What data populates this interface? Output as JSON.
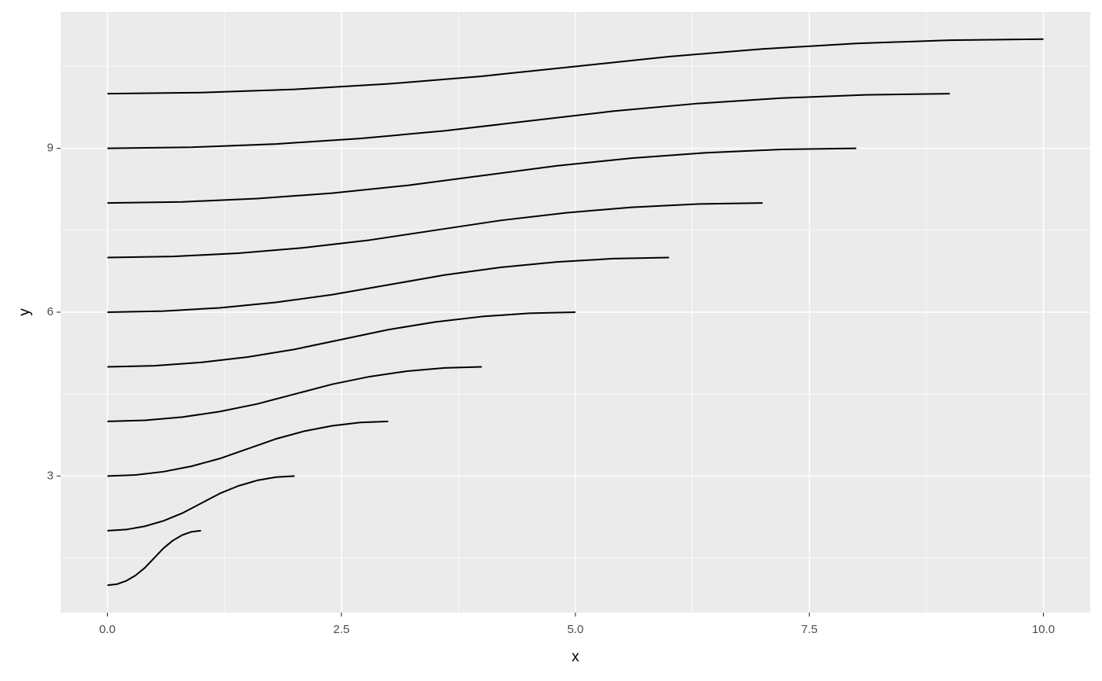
{
  "chart_data": {
    "type": "line",
    "xlabel": "x",
    "ylabel": "y",
    "xlim": [
      -0.5,
      10.5
    ],
    "ylim": [
      0.5,
      11.5
    ],
    "xticks": [
      {
        "value": 0,
        "label": "0.0"
      },
      {
        "value": 2.5,
        "label": "2.5"
      },
      {
        "value": 5,
        "label": "5.0"
      },
      {
        "value": 7.5,
        "label": "7.5"
      },
      {
        "value": 10,
        "label": "10.0"
      }
    ],
    "yticks": [
      3,
      6,
      9
    ],
    "x_minor_grid": [
      1.25,
      3.75,
      6.25,
      8.75
    ],
    "y_minor_grid": [
      1.5,
      4.5,
      7.5,
      10.5
    ],
    "grid": true,
    "series": [
      {
        "color": "#000000",
        "x": [
          0,
          0.1,
          0.2,
          0.3,
          0.4,
          0.5,
          0.6,
          0.7,
          0.8,
          0.9,
          1
        ],
        "values": [
          1,
          1.02,
          1.08,
          1.18,
          1.32,
          1.5,
          1.68,
          1.82,
          1.92,
          1.98,
          2
        ]
      },
      {
        "color": "#000000",
        "x": [
          0,
          0.2,
          0.4,
          0.6,
          0.8,
          1,
          1.2,
          1.4,
          1.6,
          1.8,
          2
        ],
        "values": [
          2,
          2.02,
          2.08,
          2.18,
          2.32,
          2.5,
          2.68,
          2.82,
          2.92,
          2.98,
          3
        ]
      },
      {
        "color": "#000000",
        "x": [
          0,
          0.3,
          0.6,
          0.9,
          1.2,
          1.5,
          1.8,
          2.1,
          2.4,
          2.7,
          3
        ],
        "values": [
          3,
          3.02,
          3.08,
          3.18,
          3.32,
          3.5,
          3.68,
          3.82,
          3.92,
          3.98,
          4
        ]
      },
      {
        "color": "#000000",
        "x": [
          0,
          0.4,
          0.8,
          1.2,
          1.6,
          2,
          2.4,
          2.8,
          3.2,
          3.6,
          4
        ],
        "values": [
          4,
          4.02,
          4.08,
          4.18,
          4.32,
          4.5,
          4.68,
          4.82,
          4.92,
          4.98,
          5
        ]
      },
      {
        "color": "#000000",
        "x": [
          0,
          0.5,
          1,
          1.5,
          2,
          2.5,
          3,
          3.5,
          4,
          4.5,
          5
        ],
        "values": [
          5,
          5.02,
          5.08,
          5.18,
          5.32,
          5.5,
          5.68,
          5.82,
          5.92,
          5.98,
          6
        ]
      },
      {
        "color": "#000000",
        "x": [
          0,
          0.6,
          1.2,
          1.8,
          2.4,
          3,
          3.6,
          4.2,
          4.8,
          5.4,
          6
        ],
        "values": [
          6,
          6.02,
          6.08,
          6.18,
          6.32,
          6.5,
          6.68,
          6.82,
          6.92,
          6.98,
          7
        ]
      },
      {
        "color": "#000000",
        "x": [
          0,
          0.7,
          1.4,
          2.1,
          2.8,
          3.5,
          4.2,
          4.9,
          5.6,
          6.3,
          7
        ],
        "values": [
          7,
          7.02,
          7.08,
          7.18,
          7.32,
          7.5,
          7.68,
          7.82,
          7.92,
          7.98,
          8
        ]
      },
      {
        "color": "#000000",
        "x": [
          0,
          0.8,
          1.6,
          2.4,
          3.2,
          4,
          4.8,
          5.6,
          6.4,
          7.2,
          8
        ],
        "values": [
          8,
          8.02,
          8.08,
          8.18,
          8.32,
          8.5,
          8.68,
          8.82,
          8.92,
          8.98,
          9
        ]
      },
      {
        "color": "#000000",
        "x": [
          0,
          0.9,
          1.8,
          2.7,
          3.6,
          4.5,
          5.4,
          6.3,
          7.2,
          8.1,
          9
        ],
        "values": [
          9,
          9.02,
          9.08,
          9.18,
          9.32,
          9.5,
          9.68,
          9.82,
          9.92,
          9.98,
          10
        ]
      },
      {
        "color": "#000000",
        "x": [
          0,
          1,
          2,
          3,
          4,
          5,
          6,
          7,
          8,
          9,
          10
        ],
        "values": [
          10,
          10.02,
          10.08,
          10.18,
          10.32,
          10.5,
          10.68,
          10.82,
          10.92,
          10.98,
          11
        ]
      }
    ]
  }
}
